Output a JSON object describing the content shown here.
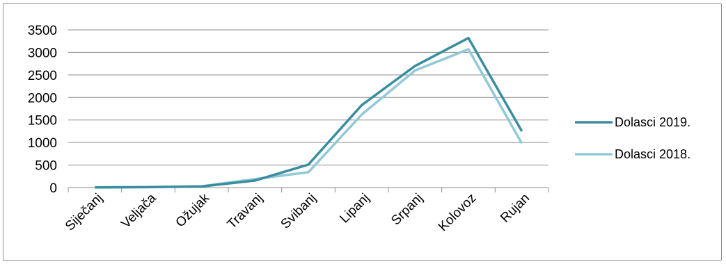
{
  "chart_data": {
    "type": "line",
    "categories": [
      "Siječanj",
      "Veljača",
      "Ožujak",
      "Travanj",
      "Svibanj",
      "Lipanj",
      "Srpanj",
      "Kolovoz",
      "Rujan"
    ],
    "series": [
      {
        "name": "Dolasci 2019.",
        "color": "#3a8d9e",
        "values": [
          5,
          10,
          25,
          155,
          510,
          1830,
          2700,
          3320,
          1250
        ]
      },
      {
        "name": "Dolasci 2018.",
        "color": "#93c8d6",
        "values": [
          5,
          12,
          30,
          190,
          340,
          1620,
          2600,
          3070,
          980
        ]
      }
    ],
    "ylim": [
      0,
      3500
    ],
    "yticks": [
      0,
      500,
      1000,
      1500,
      2000,
      2500,
      3000,
      3500
    ],
    "grid": true,
    "legend": "right"
  }
}
